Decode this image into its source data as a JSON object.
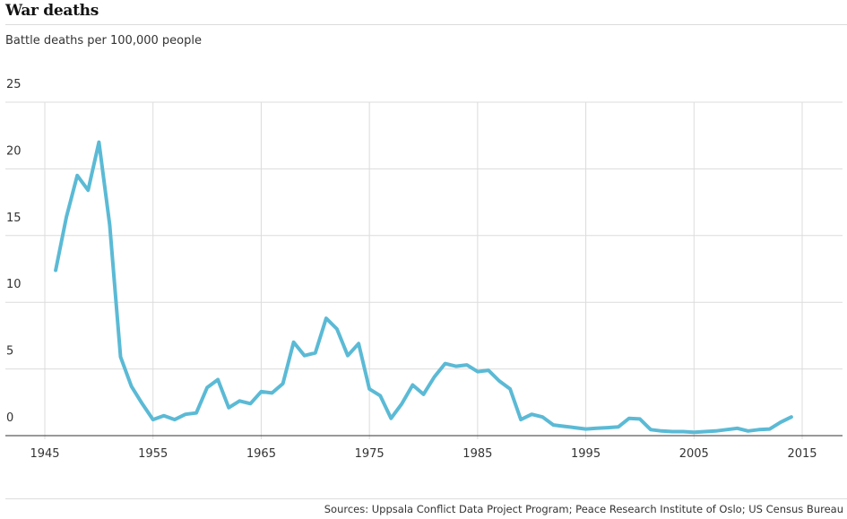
{
  "title": "War deaths",
  "subtitle": "Battle deaths per 100,000 people",
  "source": "Sources: Uppsala Conflict Data Project Program; Peace Research Institute of Oslo; US Census Bureau",
  "colors": {
    "line": "#5bbad5",
    "grid": "#dcdcdc",
    "axis": "#333333",
    "tick_text": "#333333"
  },
  "chart_data": {
    "type": "line",
    "xlim": [
      1945,
      2015
    ],
    "ylim": [
      0,
      25
    ],
    "x_ticks": [
      1945,
      1955,
      1965,
      1975,
      1985,
      1995,
      2005,
      2015
    ],
    "y_ticks": [
      0,
      5,
      10,
      15,
      20,
      25
    ],
    "grid": "both",
    "series": [
      {
        "x": [
          1946,
          1947,
          1948,
          1949,
          1950,
          1951,
          1952,
          1953,
          1954,
          1955,
          1956,
          1957,
          1958,
          1959,
          1960,
          1961,
          1962,
          1963,
          1964,
          1965,
          1966,
          1967,
          1968,
          1969,
          1970,
          1971,
          1972,
          1973,
          1974,
          1975,
          1976,
          1977,
          1978,
          1979,
          1980,
          1981,
          1982,
          1983,
          1984,
          1985,
          1986,
          1987,
          1988,
          1989,
          1990,
          1991,
          1992,
          1993,
          1994,
          1995,
          1996,
          1997,
          1998,
          1999,
          2000,
          2001,
          2002,
          2003,
          2004,
          2005,
          2006,
          2007,
          2008,
          2009,
          2010,
          2011,
          2012,
          2013,
          2014
        ],
        "y": [
          12.4,
          16.4,
          19.5,
          18.4,
          22.0,
          15.8,
          5.9,
          3.7,
          2.4,
          1.2,
          1.5,
          1.2,
          1.6,
          1.7,
          3.6,
          4.2,
          2.1,
          2.6,
          2.4,
          3.3,
          3.2,
          3.9,
          7.0,
          6.0,
          6.2,
          8.8,
          8.0,
          6.0,
          6.9,
          3.5,
          3.0,
          1.3,
          2.4,
          3.8,
          3.1,
          4.4,
          5.4,
          5.2,
          5.3,
          4.8,
          4.9,
          4.1,
          3.5,
          1.2,
          1.6,
          1.4,
          0.8,
          0.7,
          0.6,
          0.5,
          0.55,
          0.6,
          0.65,
          1.3,
          1.25,
          0.45,
          0.35,
          0.3,
          0.3,
          0.25,
          0.3,
          0.35,
          0.45,
          0.55,
          0.35,
          0.45,
          0.5,
          1.0,
          1.4
        ]
      }
    ]
  }
}
